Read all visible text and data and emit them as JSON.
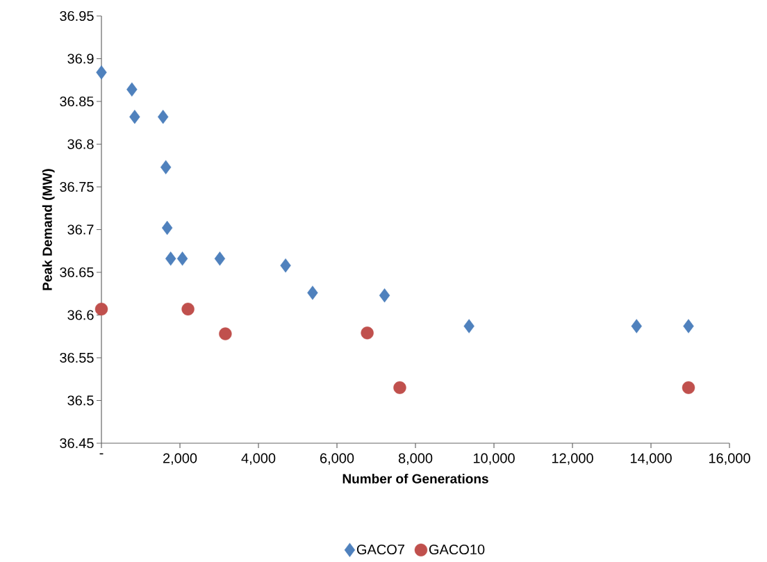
{
  "chart_data": {
    "type": "scatter",
    "xlabel": "Number of Generations",
    "ylabel": "Peak Demand (MW)",
    "series": [
      {
        "name": "GACO7",
        "color": "#4f81bd",
        "marker": "diamond",
        "x": [
          0,
          776,
          847,
          1570,
          1640,
          1675,
          1764,
          2063,
          3016,
          4691,
          5379,
          7213,
          9365,
          13633,
          14956
        ],
        "values": [
          36.884,
          36.864,
          36.832,
          36.832,
          36.773,
          36.702,
          36.666,
          36.666,
          36.666,
          36.658,
          36.626,
          36.623,
          36.587,
          36.587,
          36.587
        ]
      },
      {
        "name": "GACO10",
        "color": "#c0504d",
        "marker": "circle",
        "x": [
          0,
          2205,
          3157,
          6772,
          7601,
          14956
        ],
        "values": [
          36.607,
          36.607,
          36.578,
          36.579,
          36.515,
          36.515
        ]
      }
    ],
    "xlim": [
      0,
      16000
    ],
    "xticks": [
      {
        "value": 0,
        "label": "-"
      },
      {
        "value": 2000,
        "label": "2,000"
      },
      {
        "value": 4000,
        "label": "4,000"
      },
      {
        "value": 6000,
        "label": "6,000"
      },
      {
        "value": 8000,
        "label": "8,000"
      },
      {
        "value": 10000,
        "label": "10,000"
      },
      {
        "value": 12000,
        "label": "12,000"
      },
      {
        "value": 14000,
        "label": "14,000"
      },
      {
        "value": 16000,
        "label": "16,000"
      }
    ],
    "ylim": [
      36.45,
      36.95
    ],
    "yticks": [
      36.45,
      36.5,
      36.55,
      36.6,
      36.65,
      36.7,
      36.75,
      36.8,
      36.85,
      36.9,
      36.95
    ],
    "grid": false,
    "legend": "bottom"
  }
}
